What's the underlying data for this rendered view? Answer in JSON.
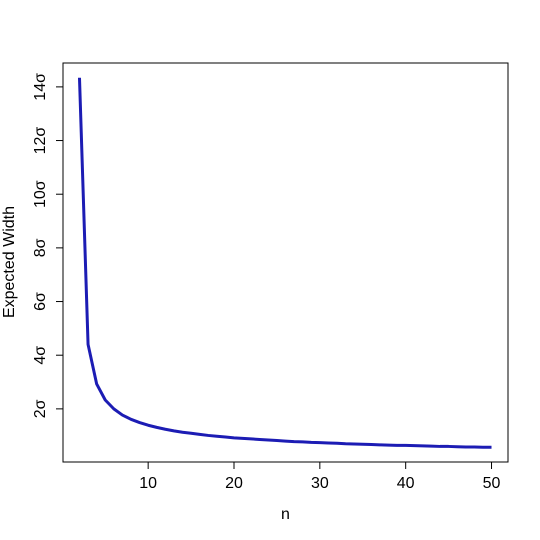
{
  "chart_data": {
    "type": "line",
    "x_label": "n",
    "y_label": "Expected Width",
    "x": [
      2,
      3,
      4,
      5,
      6,
      7,
      8,
      9,
      10,
      11,
      12,
      13,
      14,
      15,
      16,
      17,
      18,
      19,
      20,
      21,
      22,
      23,
      24,
      25,
      26,
      27,
      28,
      29,
      30,
      31,
      32,
      33,
      34,
      35,
      36,
      37,
      38,
      39,
      40,
      41,
      42,
      43,
      44,
      45,
      46,
      47,
      48,
      49,
      50
    ],
    "values": [
      14.34,
      4.4,
      2.93,
      2.33,
      2.0,
      1.77,
      1.61,
      1.49,
      1.39,
      1.31,
      1.24,
      1.18,
      1.13,
      1.09,
      1.05,
      1.01,
      0.98,
      0.95,
      0.92,
      0.9,
      0.88,
      0.86,
      0.84,
      0.82,
      0.8,
      0.78,
      0.77,
      0.75,
      0.74,
      0.73,
      0.72,
      0.7,
      0.69,
      0.68,
      0.67,
      0.66,
      0.65,
      0.64,
      0.64,
      0.63,
      0.62,
      0.61,
      0.6,
      0.6,
      0.59,
      0.58,
      0.58,
      0.57,
      0.57
    ],
    "color": "#1c1cb4",
    "xlim": [
      0.08,
      51.92
    ],
    "ylim": [
      0.02,
      14.89
    ],
    "xticks": [
      10,
      20,
      30,
      40,
      50
    ],
    "yticks": [
      {
        "value": 2,
        "label": "2σ"
      },
      {
        "value": 4,
        "label": "4σ"
      },
      {
        "value": 6,
        "label": "6σ"
      },
      {
        "value": 8,
        "label": "8σ"
      },
      {
        "value": 10,
        "label": "10σ"
      },
      {
        "value": 12,
        "label": "12σ"
      },
      {
        "value": 14,
        "label": "14σ"
      }
    ]
  }
}
